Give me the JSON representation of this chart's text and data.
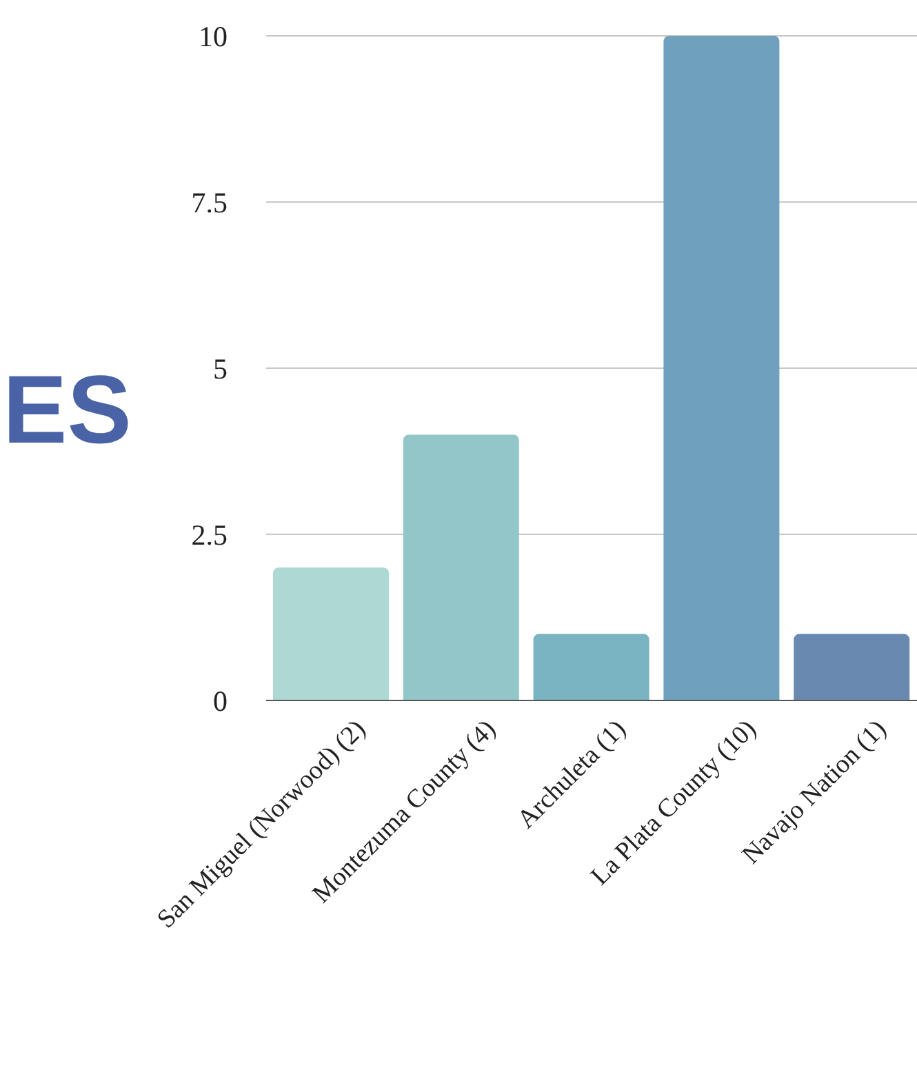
{
  "chart_data": {
    "type": "bar",
    "title": "ES",
    "categories": [
      "San Miguel (Norwood) (2)",
      "Montezuma County (4)",
      "Archuleta (1)",
      "La Plata County (10)",
      "Navajo Nation (1)"
    ],
    "values": [
      2,
      4,
      1,
      10,
      1
    ],
    "colors": [
      "#add8d3",
      "#92c6c9",
      "#7ab3c2",
      "#6fa1bf",
      "#6a89b0"
    ],
    "ylim": [
      0,
      10
    ],
    "yticks": [
      0,
      2.5,
      5,
      7.5,
      10
    ],
    "grid": "y"
  }
}
